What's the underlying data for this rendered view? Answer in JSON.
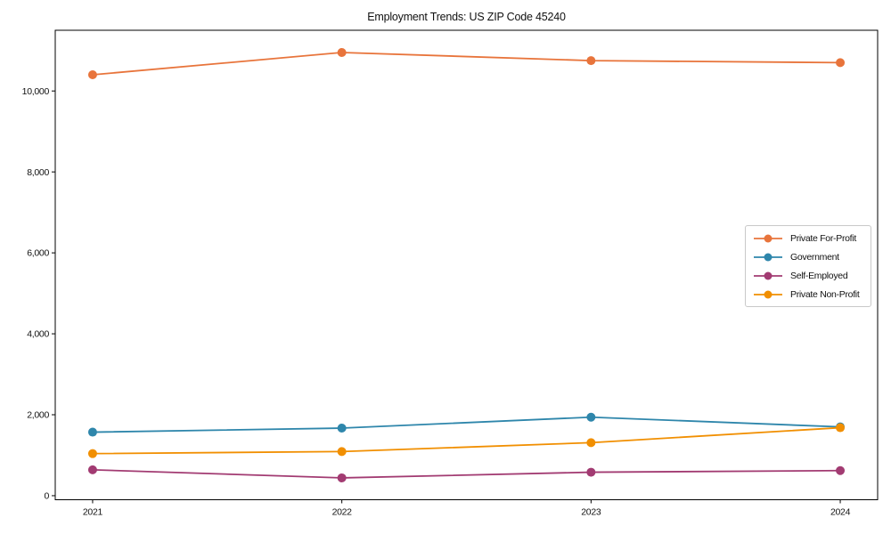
{
  "chart_data": {
    "type": "line",
    "title": "Employment Trends: US ZIP Code 45240",
    "categories": [
      "2021",
      "2022",
      "2023",
      "2024"
    ],
    "series": [
      {
        "name": "Private For-Profit",
        "color": "#E8743B",
        "values": [
          10400,
          10950,
          10750,
          10700
        ]
      },
      {
        "name": "Government",
        "color": "#2E86AB",
        "values": [
          1570,
          1670,
          1940,
          1700
        ]
      },
      {
        "name": "Self-Employed",
        "color": "#A23B72",
        "values": [
          640,
          440,
          580,
          620
        ]
      },
      {
        "name": "Private Non-Profit",
        "color": "#F18F01",
        "values": [
          1040,
          1090,
          1310,
          1680
        ]
      }
    ],
    "xlabel": "",
    "ylabel": "",
    "xlim": [
      -0.15,
      3.15
    ],
    "ylim": [
      -100,
      11500
    ],
    "yticks": [
      0,
      2000,
      4000,
      6000,
      8000,
      10000
    ],
    "ytick_labels": [
      "0",
      "2,000",
      "4,000",
      "6,000",
      "8,000",
      "10,000"
    ],
    "xtick_labels": [
      "2021",
      "2022",
      "2023",
      "2024"
    ],
    "grid": false,
    "marker": "circle",
    "legend_position": "right"
  }
}
